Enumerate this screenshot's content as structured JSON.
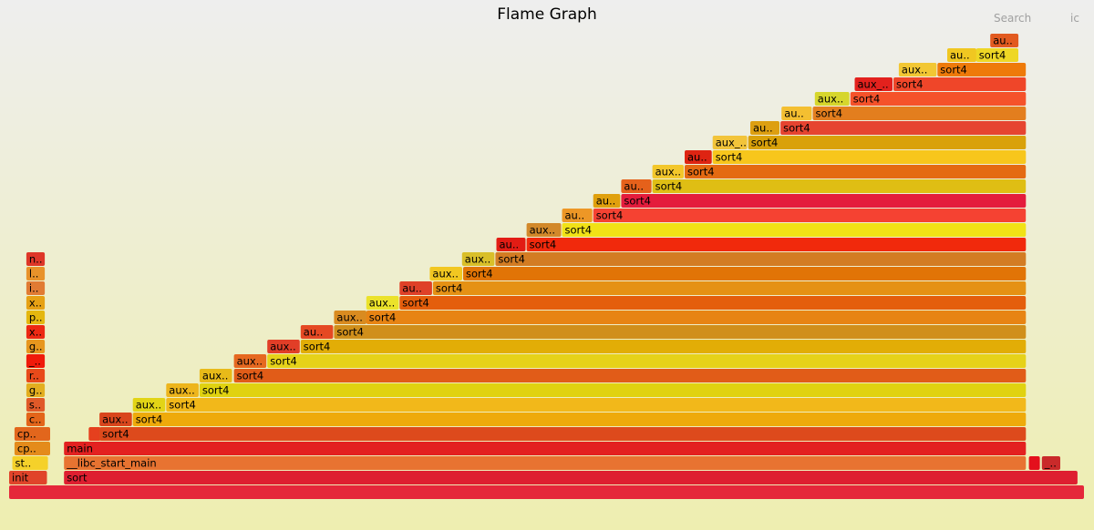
{
  "title": "Flame Graph",
  "search_label": "Search",
  "ic_label": "ic",
  "chart_data": {
    "type": "flamegraph",
    "title": "Flame Graph",
    "frames": [
      {
        "name": "",
        "label": "",
        "depth": 0,
        "start": 0.0,
        "width": 100.0,
        "color": "#e5273a"
      },
      {
        "name": "init",
        "label": "init",
        "depth": 1,
        "start": 0.0,
        "width": 3.6,
        "color": "#e0442a"
      },
      {
        "name": "sort",
        "label": "sort",
        "depth": 1,
        "start": 5.1,
        "width": 94.3,
        "color": "#de1f30"
      },
      {
        "name": "start",
        "label": "st..",
        "depth": 2,
        "start": 0.3,
        "width": 3.4,
        "color": "#f5d12a"
      },
      {
        "name": "__libc_start_main",
        "label": "__libc_start_main",
        "depth": 2,
        "start": 5.1,
        "width": 89.5,
        "color": "#e87331"
      },
      {
        "name": "frame_a",
        "label": "",
        "depth": 2,
        "start": 94.8,
        "width": 1.1,
        "color": "#e4101c"
      },
      {
        "name": "frame_b",
        "label": "_..",
        "depth": 2,
        "start": 96.0,
        "width": 1.8,
        "color": "#c92a2a"
      },
      {
        "name": "cp_a",
        "label": "cp..",
        "depth": 3,
        "start": 0.5,
        "width": 3.4,
        "color": "#e48b1b"
      },
      {
        "name": "main",
        "label": "main",
        "depth": 3,
        "start": 5.1,
        "width": 89.5,
        "color": "#e32120"
      },
      {
        "name": "cp_b",
        "label": "cp..",
        "depth": 4,
        "start": 0.5,
        "width": 3.4,
        "color": "#e2661c"
      },
      {
        "name": "frame_c",
        "label": "",
        "depth": 4,
        "start": 7.4,
        "width": 1.2,
        "color": "#e5401e"
      },
      {
        "name": "sort4",
        "label": "sort4",
        "depth": 4,
        "start": 8.4,
        "width": 86.2,
        "color": "#dd4a1c"
      },
      {
        "name": "c",
        "label": "c..",
        "depth": 5,
        "start": 1.6,
        "width": 1.8,
        "color": "#e3651a"
      },
      {
        "name": "aux_1",
        "label": "aux..",
        "depth": 5,
        "start": 8.4,
        "width": 3.1,
        "color": "#d9461d"
      },
      {
        "name": "sort4_1",
        "label": "sort4",
        "depth": 5,
        "start": 11.5,
        "width": 83.1,
        "color": "#eeaa0b"
      },
      {
        "name": "s",
        "label": "s..",
        "depth": 6,
        "start": 1.6,
        "width": 1.8,
        "color": "#e05928"
      },
      {
        "name": "aux_2",
        "label": "aux..",
        "depth": 6,
        "start": 11.5,
        "width": 3.1,
        "color": "#e2d416"
      },
      {
        "name": "sort4_2",
        "label": "sort4",
        "depth": 6,
        "start": 14.6,
        "width": 80.0,
        "color": "#f2b81a"
      },
      {
        "name": "g",
        "label": "g..",
        "depth": 7,
        "start": 1.6,
        "width": 1.8,
        "color": "#e3ae1f"
      },
      {
        "name": "aux_3",
        "label": "aux..",
        "depth": 7,
        "start": 14.6,
        "width": 3.1,
        "color": "#edb51c"
      },
      {
        "name": "sort4_3",
        "label": "sort4",
        "depth": 7,
        "start": 17.7,
        "width": 76.9,
        "color": "#e0d210"
      },
      {
        "name": "r",
        "label": "r..",
        "depth": 8,
        "start": 1.6,
        "width": 1.8,
        "color": "#e84a1a"
      },
      {
        "name": "aux_4",
        "label": "aux..",
        "depth": 8,
        "start": 17.7,
        "width": 3.1,
        "color": "#e8ba19"
      },
      {
        "name": "sort4_4",
        "label": "sort4",
        "depth": 8,
        "start": 20.9,
        "width": 73.7,
        "color": "#e15c18"
      },
      {
        "name": "_",
        "label": "_..",
        "depth": 9,
        "start": 1.6,
        "width": 1.8,
        "color": "#f01a0a"
      },
      {
        "name": "aux_5",
        "label": "aux..",
        "depth": 9,
        "start": 20.9,
        "width": 3.1,
        "color": "#e66820"
      },
      {
        "name": "sort4_5",
        "label": "sort4",
        "depth": 9,
        "start": 24.0,
        "width": 70.6,
        "color": "#e6d219"
      },
      {
        "name": "g2",
        "label": "g..",
        "depth": 10,
        "start": 1.6,
        "width": 1.8,
        "color": "#e7961e"
      },
      {
        "name": "aux_6",
        "label": "aux..",
        "depth": 10,
        "start": 24.0,
        "width": 3.1,
        "color": "#e13e27"
      },
      {
        "name": "sort4_6",
        "label": "sort4",
        "depth": 10,
        "start": 27.1,
        "width": 67.5,
        "color": "#e2ad06"
      },
      {
        "name": "x",
        "label": "x..",
        "depth": 11,
        "start": 1.6,
        "width": 1.8,
        "color": "#ed2813"
      },
      {
        "name": "aux_7",
        "label": "au..",
        "depth": 11,
        "start": 27.1,
        "width": 3.1,
        "color": "#e54923"
      },
      {
        "name": "sort4_7",
        "label": "sort4",
        "depth": 11,
        "start": 30.2,
        "width": 64.4,
        "color": "#d08f1b"
      },
      {
        "name": "p",
        "label": "p..",
        "depth": 12,
        "start": 1.6,
        "width": 1.8,
        "color": "#e4b70f"
      },
      {
        "name": "aux_8",
        "label": "aux..",
        "depth": 12,
        "start": 30.2,
        "width": 3.1,
        "color": "#d98b20"
      },
      {
        "name": "sort4_8",
        "label": "sort4",
        "depth": 12,
        "start": 33.2,
        "width": 61.4,
        "color": "#e78414"
      },
      {
        "name": "x2",
        "label": "x..",
        "depth": 13,
        "start": 1.6,
        "width": 1.8,
        "color": "#e6a114"
      },
      {
        "name": "aux_9",
        "label": "aux..",
        "depth": 13,
        "start": 33.2,
        "width": 3.1,
        "color": "#ebe22a"
      },
      {
        "name": "sort4_9",
        "label": "sort4",
        "depth": 13,
        "start": 36.3,
        "width": 58.3,
        "color": "#e45e0c"
      },
      {
        "name": "i",
        "label": "i..",
        "depth": 14,
        "start": 1.6,
        "width": 1.8,
        "color": "#e17b33"
      },
      {
        "name": "aux_10",
        "label": "au..",
        "depth": 14,
        "start": 36.3,
        "width": 3.1,
        "color": "#df4128"
      },
      {
        "name": "sort4_10",
        "label": "sort4",
        "depth": 14,
        "start": 39.4,
        "width": 55.2,
        "color": "#e59114"
      },
      {
        "name": "l",
        "label": "l..",
        "depth": 15,
        "start": 1.6,
        "width": 1.8,
        "color": "#e8922a"
      },
      {
        "name": "aux_11",
        "label": "aux..",
        "depth": 15,
        "start": 39.1,
        "width": 3.1,
        "color": "#f2c721"
      },
      {
        "name": "sort4_11",
        "label": "sort4",
        "depth": 15,
        "start": 42.2,
        "width": 52.4,
        "color": "#e17406"
      },
      {
        "name": "n",
        "label": "n..",
        "depth": 16,
        "start": 1.6,
        "width": 1.8,
        "color": "#de3628"
      },
      {
        "name": "aux_12",
        "label": "aux..",
        "depth": 16,
        "start": 42.1,
        "width": 3.1,
        "color": "#d9bf29"
      },
      {
        "name": "sort4_12",
        "label": "sort4",
        "depth": 16,
        "start": 45.2,
        "width": 49.4,
        "color": "#d37c23"
      },
      {
        "name": "aux_13",
        "label": "au..",
        "depth": 17,
        "start": 45.3,
        "width": 2.8,
        "color": "#e21c14"
      },
      {
        "name": "sort4_13",
        "label": "sort4",
        "depth": 17,
        "start": 48.1,
        "width": 46.5,
        "color": "#f1290c"
      },
      {
        "name": "aux_14",
        "label": "aux..",
        "depth": 18,
        "start": 48.1,
        "width": 3.3,
        "color": "#d2882a"
      },
      {
        "name": "sort4_14",
        "label": "sort4",
        "depth": 18,
        "start": 51.4,
        "width": 43.2,
        "color": "#f1e216"
      },
      {
        "name": "aux_15",
        "label": "au..",
        "depth": 19,
        "start": 51.4,
        "width": 2.9,
        "color": "#ed9726"
      },
      {
        "name": "sort4_15",
        "label": "sort4",
        "depth": 19,
        "start": 54.3,
        "width": 40.3,
        "color": "#f54232"
      },
      {
        "name": "aux_16",
        "label": "au..",
        "depth": 20,
        "start": 54.3,
        "width": 2.6,
        "color": "#e0a00d"
      },
      {
        "name": "sort4_16",
        "label": "sort4",
        "depth": 20,
        "start": 56.9,
        "width": 37.7,
        "color": "#e41c3c"
      },
      {
        "name": "aux_17",
        "label": "au..",
        "depth": 21,
        "start": 56.9,
        "width": 2.9,
        "color": "#e5611b"
      },
      {
        "name": "sort4_17",
        "label": "sort4",
        "depth": 21,
        "start": 59.8,
        "width": 34.8,
        "color": "#dfbe14"
      },
      {
        "name": "aux_18",
        "label": "aux..",
        "depth": 22,
        "start": 59.8,
        "width": 3.0,
        "color": "#f3c72b"
      },
      {
        "name": "sort4_18",
        "label": "sort4",
        "depth": 22,
        "start": 62.8,
        "width": 31.8,
        "color": "#e46a12"
      },
      {
        "name": "aux_19",
        "label": "au..",
        "depth": 23,
        "start": 62.8,
        "width": 2.6,
        "color": "#de2412"
      },
      {
        "name": "sort4_19",
        "label": "sort4",
        "depth": 23,
        "start": 65.4,
        "width": 29.2,
        "color": "#f7c61c"
      },
      {
        "name": "aux_20",
        "label": "aux_..",
        "depth": 24,
        "start": 65.4,
        "width": 3.3,
        "color": "#f2c43a"
      },
      {
        "name": "sort4_20",
        "label": "sort4",
        "depth": 24,
        "start": 68.7,
        "width": 25.9,
        "color": "#d9a10a"
      },
      {
        "name": "aux_21",
        "label": "au..",
        "depth": 25,
        "start": 68.9,
        "width": 2.8,
        "color": "#dd9f11"
      },
      {
        "name": "sort4_21",
        "label": "sort4",
        "depth": 25,
        "start": 71.7,
        "width": 22.9,
        "color": "#e64430"
      },
      {
        "name": "aux_22",
        "label": "au..",
        "depth": 26,
        "start": 71.8,
        "width": 2.9,
        "color": "#f4bf31"
      },
      {
        "name": "sort4_22",
        "label": "sort4",
        "depth": 26,
        "start": 74.7,
        "width": 19.9,
        "color": "#e37e1e"
      },
      {
        "name": "aux_23",
        "label": "aux..",
        "depth": 27,
        "start": 74.9,
        "width": 3.3,
        "color": "#d6d62c"
      },
      {
        "name": "sort4_23",
        "label": "sort4",
        "depth": 27,
        "start": 78.2,
        "width": 16.4,
        "color": "#f5522a"
      },
      {
        "name": "aux_24",
        "label": "aux_..",
        "depth": 28,
        "start": 78.6,
        "width": 3.6,
        "color": "#e3211d"
      },
      {
        "name": "sort4_24",
        "label": "sort4",
        "depth": 28,
        "start": 82.2,
        "width": 12.4,
        "color": "#ef4629"
      },
      {
        "name": "aux_25",
        "label": "aux..",
        "depth": 29,
        "start": 82.7,
        "width": 3.6,
        "color": "#f2c734"
      },
      {
        "name": "sort4_25",
        "label": "sort4",
        "depth": 29,
        "start": 86.3,
        "width": 8.3,
        "color": "#ee7a0a"
      },
      {
        "name": "aux_26",
        "label": "au..",
        "depth": 30,
        "start": 87.2,
        "width": 2.8,
        "color": "#f0c721"
      },
      {
        "name": "sort4_26",
        "label": "sort4",
        "depth": 30,
        "start": 89.9,
        "width": 4.0,
        "color": "#eed725"
      },
      {
        "name": "aux_27",
        "label": "au..",
        "depth": 31,
        "start": 91.2,
        "width": 2.7,
        "color": "#e25a20"
      }
    ]
  }
}
